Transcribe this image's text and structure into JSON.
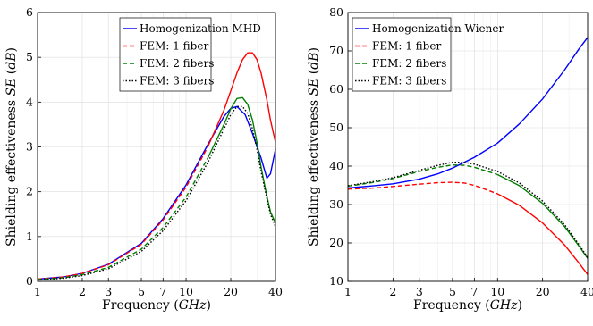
{
  "chart_data": [
    {
      "type": "line",
      "xlabel": "Frequency",
      "xlabel_unit": "GHz",
      "ylabel": "Shielding effectiveness",
      "ylabel_symbol": "SE",
      "ylabel_unit": "dB",
      "x_scale": "log",
      "xlim": [
        1,
        40
      ],
      "ylim": [
        0,
        6
      ],
      "x_ticks": [
        1,
        2,
        3,
        5,
        7,
        10,
        20,
        40
      ],
      "y_ticks": [
        0,
        1,
        2,
        3,
        4,
        5,
        6
      ],
      "grid": true,
      "legend_position": "top-right",
      "series": [
        {
          "name": "Homogenization MHD",
          "color": "#0000ff",
          "dash": "solid",
          "x": [
            1,
            1.5,
            2,
            3,
            5,
            7,
            10,
            14,
            18,
            20,
            22,
            25,
            28,
            32,
            35,
            37,
            40
          ],
          "y": [
            0.05,
            0.1,
            0.18,
            0.38,
            0.85,
            1.4,
            2.15,
            3.05,
            3.68,
            3.86,
            3.9,
            3.72,
            3.3,
            2.75,
            2.3,
            2.4,
            2.95
          ]
        },
        {
          "name": "FEM: 1 fiber",
          "color": "#ff0000",
          "dash": "dashed-then-solid",
          "x": [
            1,
            1.5,
            2,
            3,
            5,
            7,
            10,
            14,
            18,
            20,
            22,
            24,
            26,
            28,
            30,
            32,
            35,
            37,
            40
          ],
          "y": [
            0.05,
            0.1,
            0.18,
            0.37,
            0.83,
            1.37,
            2.1,
            3.0,
            3.82,
            4.25,
            4.65,
            4.95,
            5.1,
            5.1,
            4.95,
            4.65,
            4.05,
            3.6,
            3.1
          ]
        },
        {
          "name": "FEM: 2 fibers",
          "color": "#008000",
          "dash": "dashed-then-solid",
          "x": [
            1,
            1.5,
            2,
            3,
            5,
            7,
            10,
            14,
            18,
            20,
            22,
            24,
            26,
            28,
            30,
            32,
            35,
            37,
            40
          ],
          "y": [
            0.04,
            0.08,
            0.15,
            0.31,
            0.72,
            1.2,
            1.88,
            2.75,
            3.5,
            3.85,
            4.08,
            4.1,
            3.95,
            3.6,
            3.1,
            2.55,
            1.9,
            1.55,
            1.3
          ]
        },
        {
          "name": "FEM: 3 fibers",
          "color": "#000000",
          "dash": "dotted",
          "x": [
            1,
            1.5,
            2,
            3,
            5,
            7,
            10,
            14,
            18,
            20,
            22,
            24,
            26,
            28,
            30,
            32,
            35,
            37,
            40
          ],
          "y": [
            0.03,
            0.07,
            0.13,
            0.28,
            0.67,
            1.13,
            1.8,
            2.65,
            3.4,
            3.72,
            3.9,
            3.9,
            3.75,
            3.4,
            2.95,
            2.45,
            1.85,
            1.5,
            1.22
          ]
        }
      ]
    },
    {
      "type": "line",
      "xlabel": "Frequency",
      "xlabel_unit": "GHz",
      "ylabel": "Shielding effectiveness",
      "ylabel_symbol": "SE",
      "ylabel_unit": "dB",
      "x_scale": "log",
      "xlim": [
        1,
        40
      ],
      "ylim": [
        10,
        80
      ],
      "x_ticks": [
        1,
        2,
        3,
        5,
        7,
        10,
        20,
        40
      ],
      "y_ticks": [
        10,
        20,
        30,
        40,
        50,
        60,
        70,
        80
      ],
      "grid": true,
      "legend_position": "top-left",
      "series": [
        {
          "name": "Homogenization Wiener",
          "color": "#0000ff",
          "dash": "solid",
          "x": [
            1,
            1.5,
            2,
            3,
            4,
            5,
            7,
            10,
            14,
            20,
            28,
            35,
            40
          ],
          "y": [
            34.3,
            34.9,
            35.4,
            36.6,
            38.0,
            39.5,
            42.3,
            46.0,
            51.0,
            57.5,
            65.0,
            70.5,
            73.5
          ]
        },
        {
          "name": "FEM: 1 fiber",
          "color": "#ff0000",
          "dash": "dashed-then-solid",
          "x": [
            1,
            1.5,
            2,
            3,
            4,
            5,
            6,
            7,
            10,
            14,
            20,
            28,
            35,
            40
          ],
          "y": [
            34.0,
            34.3,
            34.7,
            35.3,
            35.7,
            35.8,
            35.6,
            35.0,
            32.8,
            29.8,
            25.2,
            19.5,
            14.8,
            11.8
          ]
        },
        {
          "name": "FEM: 2 fibers",
          "color": "#008000",
          "dash": "dashed-then-solid",
          "x": [
            1,
            1.5,
            2,
            3,
            4,
            5,
            6,
            7,
            10,
            14,
            20,
            28,
            35,
            40
          ],
          "y": [
            34.8,
            35.8,
            36.8,
            38.6,
            39.7,
            40.3,
            40.2,
            39.7,
            37.8,
            34.9,
            30.3,
            24.3,
            19.2,
            16.0
          ]
        },
        {
          "name": "FEM: 3 fibers",
          "color": "#000000",
          "dash": "dotted",
          "x": [
            1,
            1.5,
            2,
            3,
            4,
            5,
            6,
            7,
            10,
            14,
            20,
            28,
            35,
            40
          ],
          "y": [
            34.9,
            36.0,
            37.0,
            38.9,
            40.2,
            41.0,
            41.0,
            40.5,
            38.6,
            35.6,
            30.9,
            24.8,
            19.6,
            16.2
          ]
        }
      ]
    }
  ]
}
